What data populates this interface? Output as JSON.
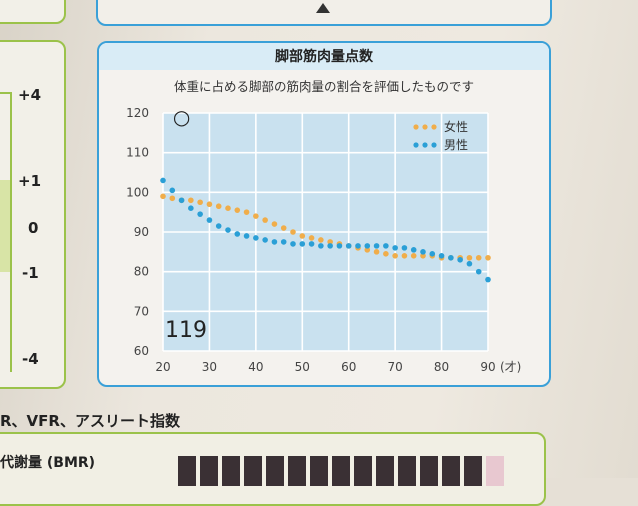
{
  "left_panel": {
    "values": [
      "+4",
      "+1",
      "0",
      "-1",
      "-4"
    ]
  },
  "chart_card": {
    "title": "脚部筋肉量点数",
    "subtitle": "体重に占める脚部の筋肉量の割合を評価したものです"
  },
  "chart_data": {
    "type": "scatter",
    "title": "脚部筋肉量点数",
    "subtitle": "体重に占める脚部の筋肉量の割合を評価したものです",
    "x_ticks": [
      "20",
      "30",
      "40",
      "50",
      "60",
      "70",
      "80",
      "90"
    ],
    "x_unit": "(才)",
    "y_ticks": [
      "120",
      "110",
      "100",
      "90",
      "80",
      "70",
      "60"
    ],
    "xlim": [
      20,
      90
    ],
    "ylim": [
      60,
      120
    ],
    "grid": true,
    "legend_position": "top-right",
    "score_label": "119",
    "marker": {
      "symbol": "○",
      "x": 24,
      "y": 119
    },
    "series": [
      {
        "name": "女性",
        "color": "#f0ad4a",
        "points": [
          [
            20,
            99
          ],
          [
            22,
            98.5
          ],
          [
            24,
            98
          ],
          [
            26,
            98
          ],
          [
            28,
            97.5
          ],
          [
            30,
            97
          ],
          [
            32,
            96.5
          ],
          [
            34,
            96
          ],
          [
            36,
            95.5
          ],
          [
            38,
            95
          ],
          [
            40,
            94
          ],
          [
            42,
            93
          ],
          [
            44,
            92
          ],
          [
            46,
            91
          ],
          [
            48,
            90
          ],
          [
            50,
            89
          ],
          [
            52,
            88.5
          ],
          [
            54,
            88
          ],
          [
            56,
            87.5
          ],
          [
            58,
            87
          ],
          [
            60,
            86.5
          ],
          [
            62,
            86
          ],
          [
            64,
            85.5
          ],
          [
            66,
            85
          ],
          [
            68,
            84.5
          ],
          [
            70,
            84
          ],
          [
            72,
            84
          ],
          [
            74,
            84
          ],
          [
            76,
            84
          ],
          [
            78,
            84
          ],
          [
            80,
            83.5
          ],
          [
            82,
            83.5
          ],
          [
            84,
            83.5
          ],
          [
            86,
            83.5
          ],
          [
            88,
            83.5
          ],
          [
            90,
            83.5
          ]
        ]
      },
      {
        "name": "男性",
        "color": "#2a9fd6",
        "points": [
          [
            20,
            103
          ],
          [
            22,
            100.5
          ],
          [
            24,
            98
          ],
          [
            26,
            96
          ],
          [
            28,
            94.5
          ],
          [
            30,
            93
          ],
          [
            32,
            91.5
          ],
          [
            34,
            90.5
          ],
          [
            36,
            89.5
          ],
          [
            38,
            89
          ],
          [
            40,
            88.5
          ],
          [
            42,
            88
          ],
          [
            44,
            87.5
          ],
          [
            46,
            87.5
          ],
          [
            48,
            87
          ],
          [
            50,
            87
          ],
          [
            52,
            87
          ],
          [
            54,
            86.5
          ],
          [
            56,
            86.5
          ],
          [
            58,
            86.5
          ],
          [
            60,
            86.5
          ],
          [
            62,
            86.5
          ],
          [
            64,
            86.5
          ],
          [
            66,
            86.5
          ],
          [
            68,
            86.5
          ],
          [
            70,
            86
          ],
          [
            72,
            86
          ],
          [
            74,
            85.5
          ],
          [
            76,
            85
          ],
          [
            78,
            84.5
          ],
          [
            80,
            84
          ],
          [
            82,
            83.5
          ],
          [
            84,
            83
          ],
          [
            86,
            82
          ],
          [
            88,
            80
          ],
          [
            90,
            78
          ]
        ]
      }
    ]
  },
  "bottom": {
    "heading": "R、VFR、アスリート指数",
    "bmr_label": "代謝量 (BMR)",
    "colors": {
      "bar_dark": "#3a3034",
      "bar_light": "#e8c8d0"
    }
  }
}
